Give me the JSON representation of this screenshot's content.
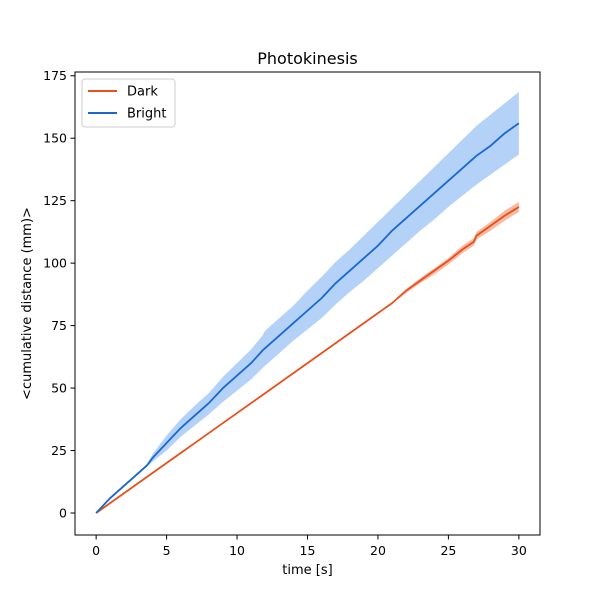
{
  "chart_data": {
    "type": "line",
    "title": "Photokinesis",
    "xlabel": "time [s]",
    "ylabel": "<cumulative distance (mm)>",
    "xlim": [
      -1.5,
      31.5
    ],
    "ylim": [
      -8.8,
      176.5
    ],
    "xticks": [
      0,
      5,
      10,
      15,
      20,
      25,
      30
    ],
    "yticks": [
      0,
      25,
      50,
      75,
      100,
      125,
      150,
      175
    ],
    "grid": false,
    "legend_position": "top-left",
    "series": [
      {
        "name": "Dark",
        "color": "#e8501a",
        "band_color": "#f7b9a0",
        "x": [
          0,
          1,
          2,
          3,
          4,
          5,
          6,
          7,
          8,
          9,
          10,
          11,
          12,
          13,
          14,
          15,
          16,
          17,
          18,
          19,
          20,
          21,
          21.4,
          22,
          23,
          24,
          25,
          26,
          26.8,
          27,
          28,
          29,
          30
        ],
        "y": [
          0,
          4,
          8,
          12,
          16,
          20,
          24,
          28,
          32,
          36,
          40,
          44,
          48,
          52,
          56,
          60,
          64,
          68,
          72,
          76,
          80,
          84,
          86,
          89,
          93,
          97,
          101,
          105.5,
          108.5,
          111,
          115,
          119,
          122.5
        ],
        "lower": [
          0,
          4,
          8,
          12,
          16,
          20,
          24,
          28,
          32,
          36,
          40,
          44,
          48,
          52,
          56,
          60,
          64,
          68,
          72,
          76,
          80,
          84,
          85.5,
          88,
          92,
          95.5,
          99.5,
          104,
          107,
          109.5,
          113,
          117,
          120.5
        ],
        "upper": [
          0,
          4,
          8,
          12,
          16,
          20,
          24,
          28,
          32,
          36,
          40,
          44,
          48,
          52,
          56,
          60,
          64,
          68,
          72,
          76,
          80,
          84,
          86.5,
          89.5,
          94,
          98,
          102,
          107,
          110,
          112.5,
          116.5,
          121,
          124.5
        ]
      },
      {
        "name": "Bright",
        "color": "#1868d0",
        "band_color": "#b4d1f8",
        "x": [
          0,
          1,
          2,
          3,
          3.6,
          4,
          5,
          6,
          7,
          8,
          9,
          10,
          11,
          11.8,
          12,
          13,
          14,
          15,
          16,
          17,
          18,
          19,
          20,
          21,
          22,
          23,
          24,
          25,
          26,
          27,
          28,
          29,
          30
        ],
        "y": [
          0,
          6,
          11,
          16,
          19,
          22,
          28,
          34,
          39,
          44,
          50,
          55,
          60,
          65,
          66,
          71,
          76,
          81,
          86,
          92,
          97,
          102,
          107,
          113,
          118,
          123,
          128,
          133,
          138,
          143,
          147,
          152,
          156
        ],
        "lower": [
          0,
          5.5,
          10.5,
          15.5,
          18.5,
          20.5,
          25,
          30.5,
          35,
          39.5,
          44.5,
          49,
          53.5,
          58,
          59,
          64,
          69,
          73.5,
          78,
          83.5,
          88.5,
          93,
          98,
          103,
          108,
          113,
          117.5,
          122.5,
          127,
          131.5,
          135.5,
          139.5,
          143.5
        ],
        "upper": [
          0,
          6.5,
          11.5,
          16.5,
          19.5,
          23.5,
          31,
          37.5,
          43,
          48,
          54.5,
          60,
          65.5,
          71,
          73,
          78,
          83,
          89,
          94.5,
          100.5,
          105.5,
          111,
          116.5,
          122,
          127.5,
          133,
          138.5,
          144,
          149.5,
          155,
          159.5,
          164,
          168.5
        ]
      }
    ]
  }
}
